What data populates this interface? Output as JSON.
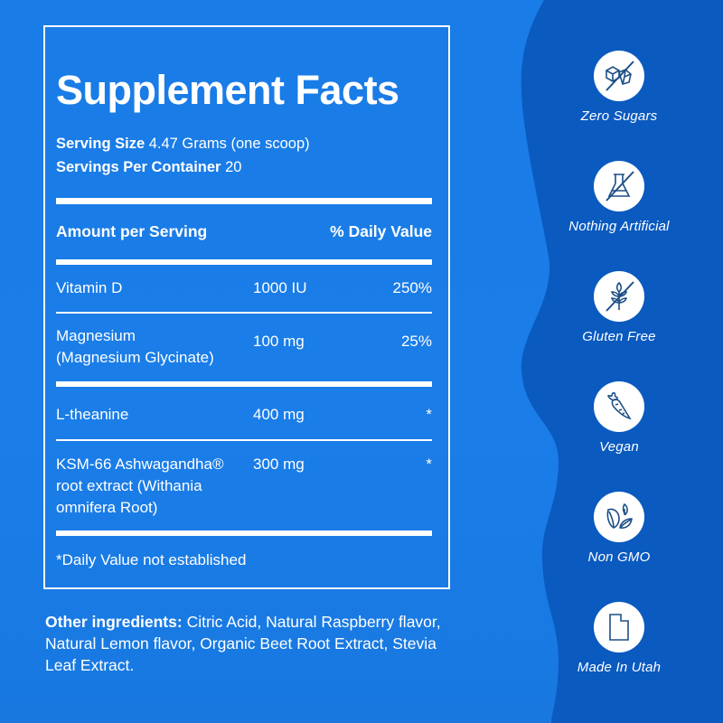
{
  "title": "Supplement Facts",
  "serving_size": {
    "label": "Serving Size",
    "value": "4.47 Grams (one scoop)"
  },
  "servings_per_container": {
    "label": "Servings Per Container",
    "value": "20"
  },
  "header": {
    "amount": "Amount per Serving",
    "daily_value": "% Daily Value"
  },
  "rows": [
    {
      "name": [
        "Vitamin D"
      ],
      "amount": "1000 IU",
      "dv": "250%"
    },
    {
      "name": [
        "Magnesium",
        "(Magnesium Glycinate)"
      ],
      "amount": "100 mg",
      "dv": "25%"
    },
    {
      "name": [
        "L-theanine"
      ],
      "amount": "400 mg",
      "dv": "*"
    },
    {
      "name": [
        "KSM-66 Ashwagandha®",
        "root extract (Withania",
        "omnifera Root)"
      ],
      "amount": "300 mg",
      "dv": "*"
    }
  ],
  "footnote": "*Daily Value not established",
  "other_ingredients": {
    "label": "Other ingredients:",
    "value": "Citric Acid, Natural Raspberry flavor, Natural Lemon flavor, Organic Beet Root Extract, Stevia Leaf Extract."
  },
  "badges": [
    {
      "icon": "sugar-cubes-crossed-icon",
      "label": "Zero Sugars"
    },
    {
      "icon": "flask-crossed-icon",
      "label": "Nothing Artificial"
    },
    {
      "icon": "wheat-crossed-icon",
      "label": "Gluten Free"
    },
    {
      "icon": "carrot-icon",
      "label": "Vegan"
    },
    {
      "icon": "leaves-icon",
      "label": "Non GMO"
    },
    {
      "icon": "utah-state-icon",
      "label": "Made In Utah"
    }
  ],
  "colors": {
    "left_bg": "#1a7ce6",
    "right_bg": "#0a5ac0",
    "icon_stroke": "#1d4f86"
  }
}
